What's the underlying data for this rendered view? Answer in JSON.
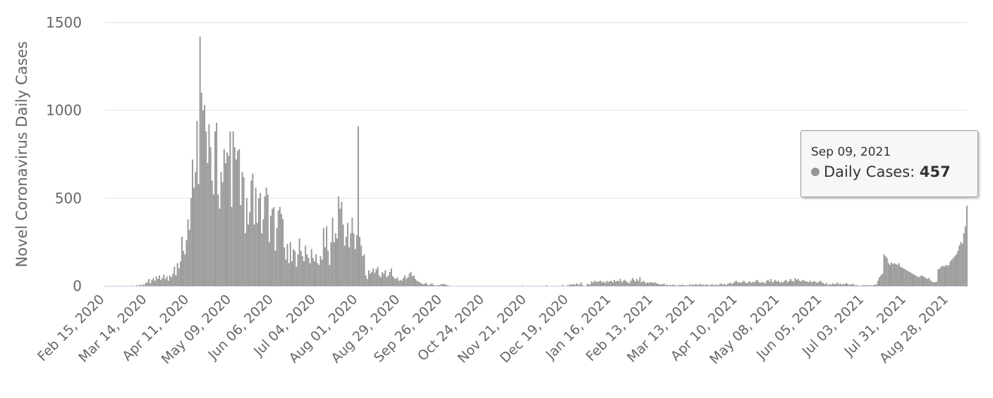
{
  "chart_data": {
    "type": "bar",
    "y_label": "Novel Coronavirus Daily Cases",
    "color": "#969696",
    "ylim": [
      0,
      1500
    ],
    "yticks": [
      0,
      500,
      1000,
      1500
    ],
    "grid": true,
    "tooltip": {
      "date": "Sep 09, 2021",
      "label": "Daily Cases:"
    },
    "categories": [
      "Feb 15, 2020",
      null,
      null,
      null,
      null,
      null,
      null,
      null,
      null,
      null,
      null,
      null,
      null,
      null,
      null,
      null,
      null,
      null,
      null,
      null,
      null,
      null,
      null,
      null,
      null,
      null,
      null,
      null,
      "Mar 14, 2020",
      null,
      null,
      null,
      null,
      null,
      null,
      null,
      null,
      null,
      null,
      null,
      null,
      null,
      null,
      null,
      null,
      null,
      null,
      null,
      null,
      null,
      null,
      null,
      null,
      null,
      null,
      null,
      "Apr 11, 2020",
      null,
      null,
      null,
      null,
      null,
      null,
      null,
      null,
      null,
      null,
      null,
      null,
      null,
      null,
      null,
      null,
      null,
      null,
      null,
      null,
      null,
      null,
      null,
      null,
      null,
      null,
      null,
      "May 09, 2020",
      null,
      null,
      null,
      null,
      null,
      null,
      null,
      null,
      null,
      null,
      null,
      null,
      null,
      null,
      null,
      null,
      null,
      null,
      null,
      null,
      null,
      null,
      null,
      null,
      null,
      null,
      null,
      "Jun 06, 2020",
      null,
      null,
      null,
      null,
      null,
      null,
      null,
      null,
      null,
      null,
      null,
      null,
      null,
      null,
      null,
      null,
      null,
      null,
      null,
      null,
      null,
      null,
      null,
      null,
      null,
      null,
      null,
      "Jul 04, 2020",
      null,
      null,
      null,
      null,
      null,
      null,
      null,
      null,
      null,
      null,
      null,
      null,
      null,
      null,
      null,
      null,
      null,
      null,
      null,
      null,
      null,
      null,
      null,
      null,
      null,
      null,
      null,
      "Aug 01, 2020",
      null,
      null,
      null,
      null,
      null,
      null,
      null,
      null,
      null,
      null,
      null,
      null,
      null,
      null,
      null,
      null,
      null,
      null,
      null,
      null,
      null,
      null,
      null,
      null,
      null,
      null,
      null,
      "Aug 29, 2020",
      null,
      null,
      null,
      null,
      null,
      null,
      null,
      null,
      null,
      null,
      null,
      null,
      null,
      null,
      null,
      null,
      null,
      null,
      null,
      null,
      null,
      null,
      null,
      null,
      null,
      null,
      null,
      "Sep 26, 2020",
      null,
      null,
      null,
      null,
      null,
      null,
      null,
      null,
      null,
      null,
      null,
      null,
      null,
      null,
      null,
      null,
      null,
      null,
      null,
      null,
      null,
      null,
      null,
      null,
      null,
      null,
      null,
      "Oct 24, 2020",
      null,
      null,
      null,
      null,
      null,
      null,
      null,
      null,
      null,
      null,
      null,
      null,
      null,
      null,
      null,
      null,
      null,
      null,
      null,
      null,
      null,
      null,
      null,
      null,
      null,
      null,
      null,
      "Nov 21, 2020",
      null,
      null,
      null,
      null,
      null,
      null,
      null,
      null,
      null,
      null,
      null,
      null,
      null,
      null,
      null,
      null,
      null,
      null,
      null,
      null,
      null,
      null,
      null,
      null,
      null,
      null,
      null,
      "Dec 19, 2020",
      null,
      null,
      null,
      null,
      null,
      null,
      null,
      null,
      null,
      null,
      null,
      null,
      null,
      null,
      null,
      null,
      null,
      null,
      null,
      null,
      null,
      null,
      null,
      null,
      null,
      null,
      null,
      "Jan 16, 2021",
      null,
      null,
      null,
      null,
      null,
      null,
      null,
      null,
      null,
      null,
      null,
      null,
      null,
      null,
      null,
      null,
      null,
      null,
      null,
      null,
      null,
      null,
      null,
      null,
      null,
      null,
      null,
      "Feb 13, 2021",
      null,
      null,
      null,
      null,
      null,
      null,
      null,
      null,
      null,
      null,
      null,
      null,
      null,
      null,
      null,
      null,
      null,
      null,
      null,
      null,
      null,
      null,
      null,
      null,
      null,
      null,
      null,
      "Mar 13, 2021",
      null,
      null,
      null,
      null,
      null,
      null,
      null,
      null,
      null,
      null,
      null,
      null,
      null,
      null,
      null,
      null,
      null,
      null,
      null,
      null,
      null,
      null,
      null,
      null,
      null,
      null,
      null,
      "Apr 10, 2021",
      null,
      null,
      null,
      null,
      null,
      null,
      null,
      null,
      null,
      null,
      null,
      null,
      null,
      null,
      null,
      null,
      null,
      null,
      null,
      null,
      null,
      null,
      null,
      null,
      null,
      null,
      null,
      "May 08, 2021",
      null,
      null,
      null,
      null,
      null,
      null,
      null,
      null,
      null,
      null,
      null,
      null,
      null,
      null,
      null,
      null,
      null,
      null,
      null,
      null,
      null,
      null,
      null,
      null,
      null,
      null,
      null,
      "Jun 05, 2021",
      null,
      null,
      null,
      null,
      null,
      null,
      null,
      null,
      null,
      null,
      null,
      null,
      null,
      null,
      null,
      null,
      null,
      null,
      null,
      null,
      null,
      null,
      null,
      null,
      null,
      null,
      null,
      "Jul 03, 2021",
      null,
      null,
      null,
      null,
      null,
      null,
      null,
      null,
      null,
      null,
      null,
      null,
      null,
      null,
      null,
      null,
      null,
      null,
      null,
      null,
      null,
      null,
      null,
      null,
      null,
      null,
      null,
      "Jul 31, 2021",
      null,
      null,
      null,
      null,
      null,
      null,
      null,
      null,
      null,
      null,
      null,
      null,
      null,
      null,
      null,
      null,
      null,
      null,
      null,
      null,
      null,
      null,
      null,
      null,
      null,
      null,
      null,
      "Aug 28, 2021",
      null,
      null,
      null,
      null,
      null,
      null,
      null,
      null,
      null,
      null,
      null,
      null
    ],
    "values": [
      0,
      0,
      0,
      0,
      0,
      0,
      0,
      0,
      0,
      0,
      0,
      0,
      0,
      0,
      0,
      0,
      0,
      0,
      2,
      0,
      0,
      5,
      0,
      8,
      3,
      10,
      6,
      18,
      20,
      40,
      15,
      35,
      45,
      30,
      55,
      40,
      60,
      35,
      45,
      65,
      40,
      55,
      30,
      60,
      50,
      70,
      110,
      60,
      130,
      100,
      140,
      280,
      200,
      180,
      260,
      380,
      320,
      500,
      720,
      560,
      650,
      940,
      580,
      1420,
      1100,
      1000,
      1030,
      880,
      700,
      920,
      790,
      600,
      520,
      880,
      930,
      520,
      440,
      650,
      590,
      780,
      700,
      760,
      740,
      880,
      450,
      880,
      790,
      720,
      770,
      780,
      460,
      650,
      620,
      300,
      500,
      350,
      420,
      600,
      640,
      350,
      560,
      360,
      500,
      530,
      300,
      380,
      510,
      560,
      520,
      250,
      400,
      440,
      450,
      200,
      330,
      430,
      450,
      410,
      380,
      220,
      150,
      240,
      130,
      250,
      140,
      210,
      200,
      110,
      180,
      270,
      200,
      170,
      140,
      230,
      180,
      160,
      130,
      210,
      160,
      140,
      180,
      130,
      120,
      170,
      150,
      330,
      220,
      340,
      200,
      120,
      250,
      390,
      250,
      300,
      270,
      510,
      440,
      480,
      350,
      230,
      280,
      360,
      220,
      300,
      390,
      300,
      210,
      290,
      910,
      280,
      230,
      170,
      180,
      60,
      40,
      90,
      70,
      80,
      100,
      75,
      95,
      110,
      60,
      50,
      80,
      70,
      90,
      50,
      60,
      80,
      100,
      55,
      45,
      40,
      50,
      30,
      35,
      30,
      45,
      60,
      40,
      50,
      70,
      80,
      55,
      60,
      40,
      30,
      25,
      20,
      15,
      10,
      12,
      18,
      8,
      5,
      10,
      15,
      6,
      3,
      2,
      4,
      5,
      10,
      10,
      12,
      8,
      5,
      3,
      0,
      0,
      0,
      0,
      0,
      0,
      0,
      0,
      0,
      0,
      0,
      0,
      0,
      0,
      0,
      0,
      0,
      0,
      0,
      0,
      0,
      0,
      0,
      0,
      0,
      0,
      0,
      0,
      0,
      0,
      0,
      0,
      0,
      0,
      0,
      0,
      0,
      0,
      0,
      0,
      0,
      0,
      0,
      0,
      0,
      0,
      0,
      0,
      3,
      0,
      0,
      0,
      0,
      0,
      0,
      0,
      0,
      0,
      0,
      0,
      0,
      0,
      0,
      0,
      4,
      0,
      0,
      0,
      0,
      0,
      0,
      0,
      0,
      0,
      0,
      6,
      0,
      0,
      5,
      5,
      10,
      8,
      12,
      6,
      15,
      10,
      8,
      20,
      5,
      0,
      0,
      12,
      8,
      10,
      25,
      20,
      30,
      25,
      22,
      28,
      30,
      20,
      25,
      18,
      30,
      22,
      28,
      30,
      20,
      35,
      25,
      30,
      28,
      40,
      22,
      30,
      35,
      25,
      20,
      15,
      30,
      45,
      35,
      25,
      40,
      30,
      50,
      20,
      30,
      25,
      15,
      20,
      18,
      22,
      20,
      18,
      20,
      15,
      12,
      10,
      8,
      10,
      15,
      5,
      8,
      3,
      6,
      4,
      8,
      5,
      3,
      2,
      6,
      4,
      8,
      5,
      3,
      4,
      2,
      10,
      5,
      8,
      6,
      10,
      8,
      5,
      12,
      6,
      8,
      4,
      10,
      6,
      3,
      8,
      10,
      5,
      6,
      8,
      4,
      10,
      15,
      8,
      12,
      5,
      10,
      15,
      20,
      12,
      18,
      25,
      30,
      20,
      22,
      18,
      25,
      30,
      20,
      15,
      22,
      28,
      18,
      25,
      20,
      30,
      35,
      22,
      18,
      25,
      20,
      15,
      30,
      35,
      25,
      40,
      20,
      28,
      35,
      25,
      30,
      18,
      25,
      20,
      30,
      35,
      22,
      28,
      40,
      30,
      25,
      45,
      35,
      40,
      30,
      25,
      35,
      30,
      28,
      25,
      22,
      30,
      20,
      25,
      28,
      20,
      18,
      25,
      30,
      20,
      15,
      10,
      18,
      5,
      12,
      8,
      15,
      10,
      12,
      20,
      10,
      15,
      8,
      12,
      10,
      18,
      12,
      5,
      10,
      12,
      8,
      3,
      5,
      2,
      3,
      0,
      5,
      5,
      3,
      5,
      2,
      4,
      3,
      5,
      8,
      10,
      30,
      50,
      60,
      70,
      180,
      170,
      160,
      130,
      120,
      135,
      125,
      130,
      125,
      120,
      130,
      110,
      105,
      100,
      95,
      90,
      85,
      80,
      75,
      70,
      65,
      60,
      55,
      50,
      55,
      60,
      55,
      50,
      45,
      40,
      45,
      30,
      25,
      20,
      22,
      25,
      95,
      100,
      110,
      115,
      110,
      120,
      115,
      120,
      140,
      150,
      160,
      170,
      180,
      200,
      230,
      250,
      240,
      300,
      340,
      457
    ]
  }
}
